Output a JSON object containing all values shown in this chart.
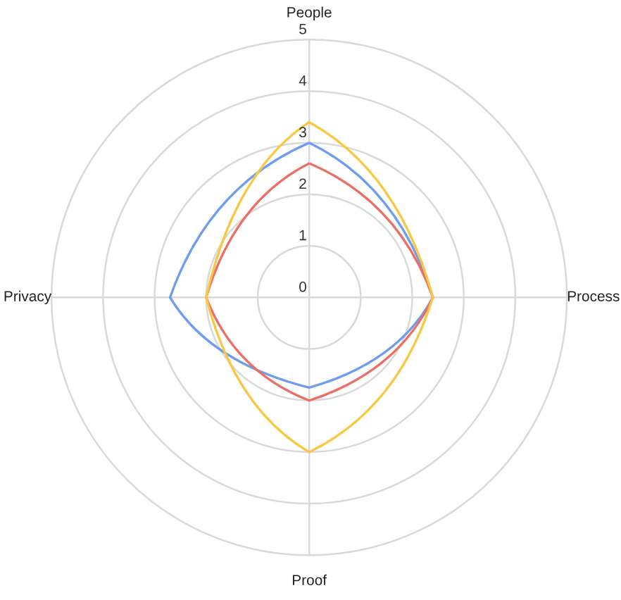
{
  "chart_data": {
    "type": "radar",
    "categories": [
      "People",
      "Process",
      "Proof",
      "Privacy"
    ],
    "series": [
      {
        "color": "#6d9cf2",
        "values": [
          3.0,
          2.4,
          1.75,
          2.7
        ]
      },
      {
        "color": "#ec6e64",
        "values": [
          2.6,
          2.4,
          2.0,
          2.0
        ]
      },
      {
        "color": "#f8c843",
        "values": [
          3.4,
          2.4,
          3.0,
          2.0
        ]
      }
    ],
    "ylim": [
      0,
      5
    ],
    "yticks": [
      0,
      1,
      2,
      3,
      4,
      5
    ],
    "grid": true,
    "legend": false,
    "marker": "none",
    "line_style": "solid"
  }
}
